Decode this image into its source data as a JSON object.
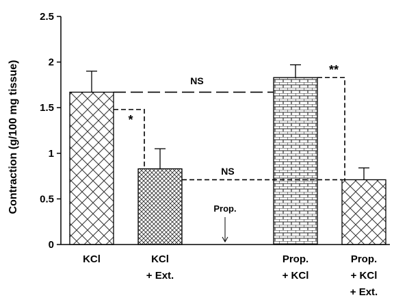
{
  "chart_data": {
    "type": "bar",
    "title": "",
    "xlabel": "",
    "ylabel": "Contraction (g/100 mg tissue)",
    "ylim": [
      0,
      2.5
    ],
    "yticks": [
      "0",
      "0.5",
      "1",
      "1.5",
      "2",
      "2.5"
    ],
    "categories": [
      [
        "KCl"
      ],
      [
        "KCl",
        "+ Ext."
      ],
      [
        "Prop.",
        "+ KCl"
      ],
      [
        "Prop.",
        "+ KCl",
        "+ Ext."
      ]
    ],
    "values": [
      1.67,
      0.83,
      1.83,
      0.71
    ],
    "errors": [
      0.23,
      0.22,
      0.14,
      0.13
    ],
    "patterns": [
      "diagonal-hatch",
      "cross-hatch",
      "brick",
      "diagonal-hatch"
    ],
    "annotations": {
      "ns_label": "NS",
      "star_single": "*",
      "star_double": "**",
      "prop_label": "Prop."
    },
    "grid": false,
    "legend": "none"
  }
}
